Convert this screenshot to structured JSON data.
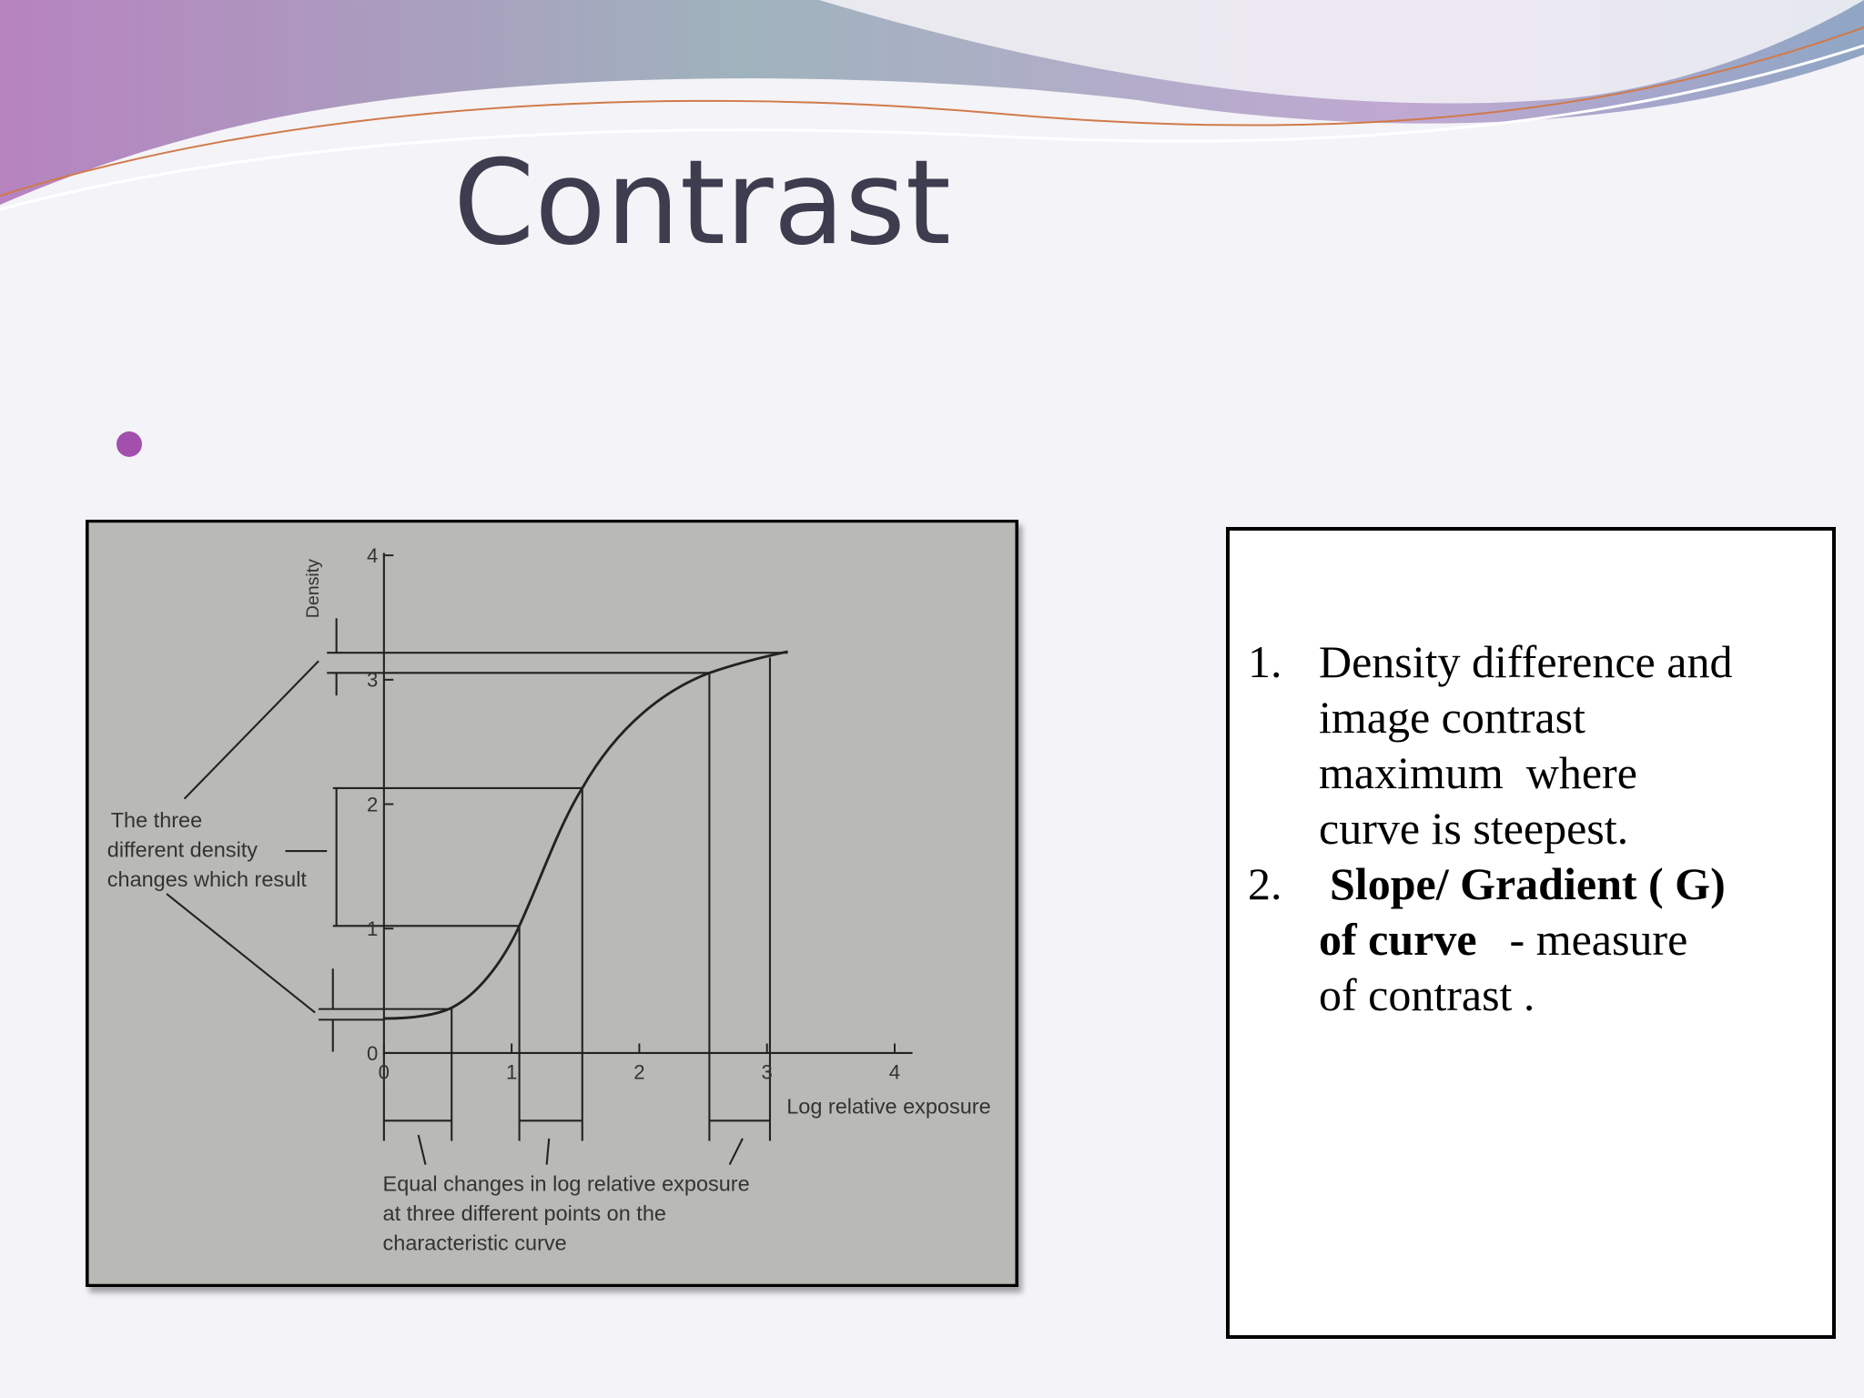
{
  "header": {
    "title": "Contrast"
  },
  "figure": {
    "y_axis_label": "Density",
    "y_ticks": [
      0,
      1,
      2,
      3,
      4
    ],
    "x_ticks": [
      0,
      1,
      2,
      3,
      4
    ],
    "x_axis_label": "Log relative exposure",
    "left_note": [
      "The three",
      "different density",
      "changes which result"
    ],
    "bottom_note": [
      "Equal changes in log relative exposure",
      "at three different points on the",
      "characteristic curve"
    ]
  },
  "list": {
    "items": [
      {
        "number": "1.",
        "lines": [
          [
            {
              "text": "Density difference and"
            }
          ],
          [
            {
              "text": "image contrast"
            }
          ],
          [
            {
              "text": "maximum  where"
            }
          ],
          [
            {
              "text": "curve is steepest."
            }
          ]
        ]
      },
      {
        "number": "2.",
        "lines": [
          [
            {
              "bold": "Slope/ Gradient ( G)"
            }
          ],
          [
            {
              "bold": "of curve"
            },
            {
              "text": "- measure"
            }
          ],
          [
            {
              "text": "of contrast ."
            }
          ]
        ]
      }
    ]
  }
}
